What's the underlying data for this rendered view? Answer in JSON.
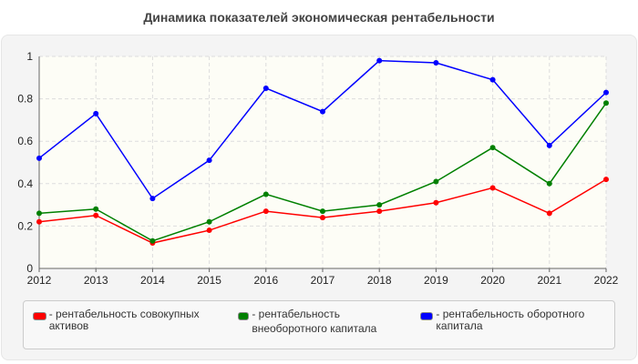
{
  "chart_data": {
    "type": "line",
    "title": "Динамика показателей экономическая рентабельности",
    "x": [
      2012,
      2013,
      2014,
      2015,
      2016,
      2017,
      2018,
      2019,
      2020,
      2021,
      2022
    ],
    "ylim": [
      0,
      1
    ],
    "yticks": [
      "0",
      "0.2",
      "0.4",
      "0.6",
      "0.8",
      "1"
    ],
    "xticks": [
      "2012",
      "2013",
      "2014",
      "2015",
      "2016",
      "2017",
      "2018",
      "2019",
      "2020",
      "2021",
      "2022"
    ],
    "grid": true,
    "legend_placement": "bottom",
    "series": [
      {
        "name": "- рентабельность совокупных активов",
        "color": "#ff0000",
        "values": [
          0.22,
          0.25,
          0.12,
          0.18,
          0.27,
          0.24,
          0.27,
          0.31,
          0.38,
          0.26,
          0.42
        ]
      },
      {
        "name": "- рентабельность внеоборотного капитала",
        "color": "#008000",
        "values": [
          0.26,
          0.28,
          0.13,
          0.22,
          0.35,
          0.27,
          0.3,
          0.41,
          0.57,
          0.4,
          0.78
        ]
      },
      {
        "name": "- рентабельность оборотного капитала",
        "color": "#0000ff",
        "values": [
          0.52,
          0.73,
          0.33,
          0.51,
          0.85,
          0.74,
          0.98,
          0.97,
          0.89,
          0.58,
          0.83
        ]
      }
    ]
  }
}
